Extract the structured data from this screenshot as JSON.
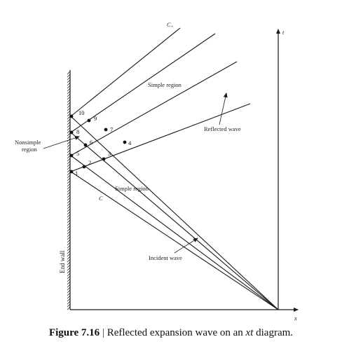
{
  "labels": {
    "c_plus": "C",
    "c_plus_sub": "+",
    "t_axis": "t",
    "x_axis": "x",
    "c_minus": "C",
    "simple_region_top": "Simple region",
    "reflected_wave": "Reflected wave",
    "nonsimple_line1": "Nonsimple",
    "nonsimple_line2": "region",
    "simple_region_mid": "Simple region",
    "incident_wave": "Incident wave",
    "end_wall": "End wall"
  },
  "points": [
    "1",
    "2",
    "3",
    "4",
    "5",
    "6",
    "7",
    "8",
    "9",
    "10"
  ],
  "caption": {
    "figure": "Figure 7.16",
    "separator": "|",
    "text_before": "Reflected expansion wave on an ",
    "text_italic": "xt",
    "text_after": " diagram."
  }
}
